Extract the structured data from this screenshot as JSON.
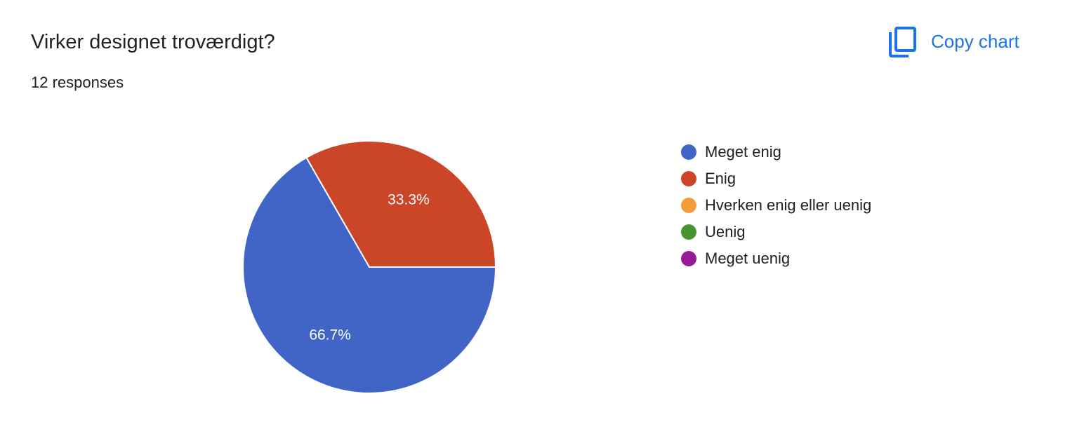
{
  "header": {
    "title": "Virker designet troværdigt?",
    "subtitle": "12 responses",
    "copy_label": "Copy chart",
    "copy_icon": "copy-icon"
  },
  "colors": {
    "accent": "#1a73e8",
    "slice_border": "#ffffff"
  },
  "chart_data": {
    "type": "pie",
    "categories": [
      "Meget enig",
      "Enig",
      "Hverken enig eller uenig",
      "Uenig",
      "Meget uenig"
    ],
    "values": [
      66.7,
      33.3,
      0,
      0,
      0
    ],
    "value_labels": [
      "66.7%",
      "33.3%",
      "",
      "",
      ""
    ],
    "colors": [
      "#4065c6",
      "#cb4627",
      "#f39c39",
      "#479531",
      "#951b9b"
    ],
    "legend_position": "right"
  }
}
